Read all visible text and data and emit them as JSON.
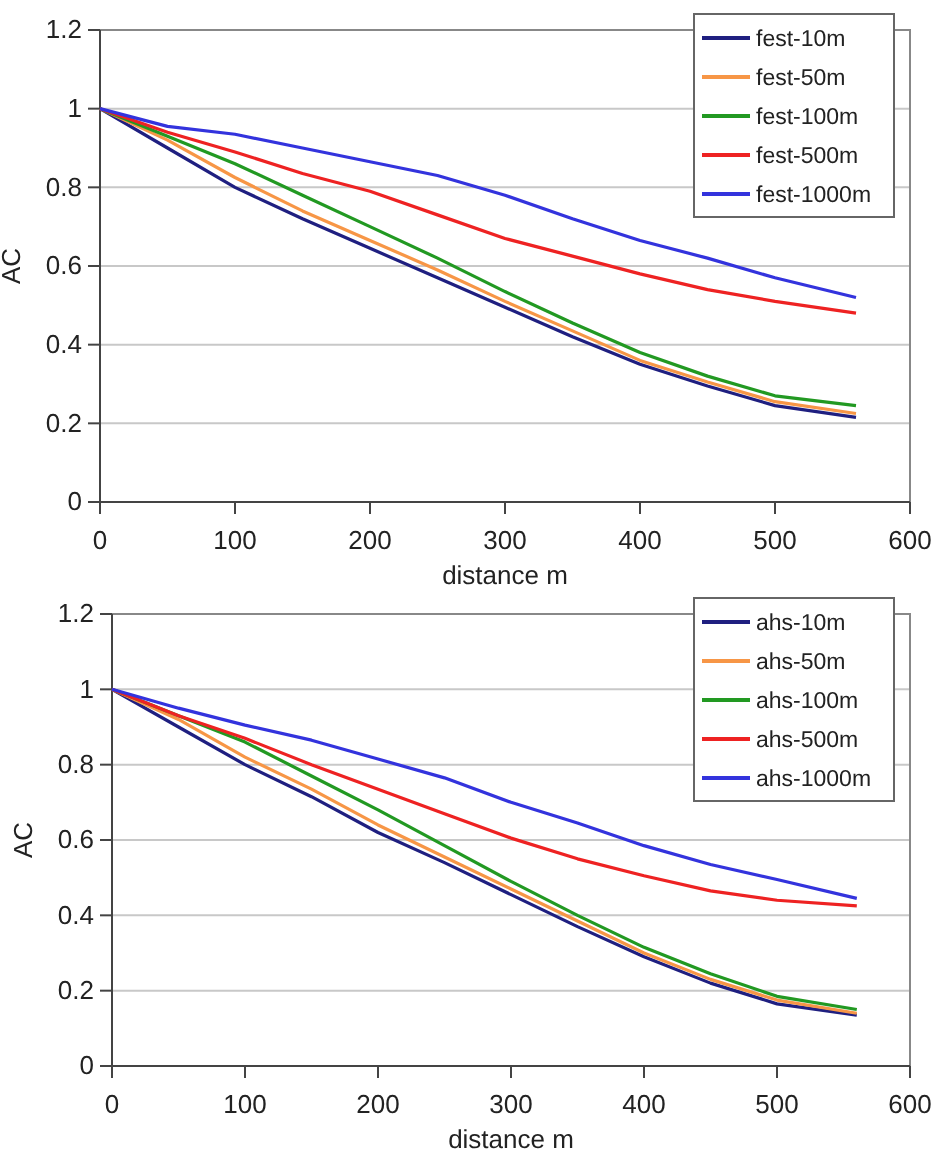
{
  "chart_data": [
    {
      "type": "line",
      "xlabel": "distance m",
      "ylabel": "AC",
      "x": [
        0,
        50,
        100,
        150,
        200,
        250,
        300,
        350,
        400,
        450,
        500,
        560
      ],
      "xlim": [
        0,
        600
      ],
      "xticks": [
        0,
        100,
        200,
        300,
        400,
        500,
        600
      ],
      "ylim": [
        0,
        1.2
      ],
      "yticks": [
        0,
        0.2,
        0.4,
        0.6,
        0.8,
        1,
        1.2
      ],
      "grid": "y",
      "legend": "top right",
      "marker": "none",
      "series": [
        {
          "name": "fest-10m",
          "color": "#1f1f80",
          "values": [
            1,
            0.9,
            0.8,
            0.72,
            0.645,
            0.57,
            0.495,
            0.42,
            0.35,
            0.295,
            0.245,
            0.215
          ]
        },
        {
          "name": "fest-50m",
          "color": "#f79646",
          "values": [
            1,
            0.92,
            0.825,
            0.74,
            0.665,
            0.59,
            0.51,
            0.435,
            0.36,
            0.305,
            0.255,
            0.225
          ]
        },
        {
          "name": "fest-100m",
          "color": "#229922",
          "values": [
            1,
            0.93,
            0.86,
            0.78,
            0.7,
            0.62,
            0.535,
            0.455,
            0.38,
            0.32,
            0.27,
            0.245
          ]
        },
        {
          "name": "fest-500m",
          "color": "#ee2222",
          "values": [
            1,
            0.94,
            0.89,
            0.835,
            0.79,
            0.73,
            0.67,
            0.625,
            0.58,
            0.54,
            0.51,
            0.48
          ]
        },
        {
          "name": "fest-1000m",
          "color": "#3333dd",
          "values": [
            1,
            0.955,
            0.935,
            0.9,
            0.865,
            0.83,
            0.78,
            0.72,
            0.665,
            0.62,
            0.57,
            0.52
          ]
        }
      ]
    },
    {
      "type": "line",
      "xlabel": "distance m",
      "ylabel": "AC",
      "x": [
        0,
        50,
        100,
        150,
        200,
        250,
        300,
        350,
        400,
        450,
        500,
        560
      ],
      "xlim": [
        0,
        600
      ],
      "xticks": [
        0,
        100,
        200,
        300,
        400,
        500,
        600
      ],
      "ylim": [
        0,
        1.2
      ],
      "yticks": [
        0,
        0.2,
        0.4,
        0.6,
        0.8,
        1,
        1.2
      ],
      "grid": "y",
      "legend": "top right",
      "marker": "none",
      "series": [
        {
          "name": "ahs-10m",
          "color": "#1f1f80",
          "values": [
            1,
            0.9,
            0.8,
            0.715,
            0.62,
            0.54,
            0.455,
            0.37,
            0.29,
            0.22,
            0.165,
            0.135
          ]
        },
        {
          "name": "ahs-50m",
          "color": "#f79646",
          "values": [
            1,
            0.92,
            0.82,
            0.735,
            0.64,
            0.555,
            0.47,
            0.385,
            0.3,
            0.23,
            0.175,
            0.14
          ]
        },
        {
          "name": "ahs-100m",
          "color": "#229922",
          "values": [
            1,
            0.93,
            0.86,
            0.77,
            0.68,
            0.585,
            0.49,
            0.4,
            0.315,
            0.245,
            0.185,
            0.15
          ]
        },
        {
          "name": "ahs-500m",
          "color": "#ee2222",
          "values": [
            1,
            0.93,
            0.87,
            0.8,
            0.735,
            0.67,
            0.605,
            0.55,
            0.505,
            0.465,
            0.44,
            0.425
          ]
        },
        {
          "name": "ahs-1000m",
          "color": "#3333dd",
          "values": [
            1,
            0.95,
            0.905,
            0.865,
            0.815,
            0.765,
            0.7,
            0.645,
            0.585,
            0.535,
            0.495,
            0.445
          ]
        }
      ]
    }
  ]
}
